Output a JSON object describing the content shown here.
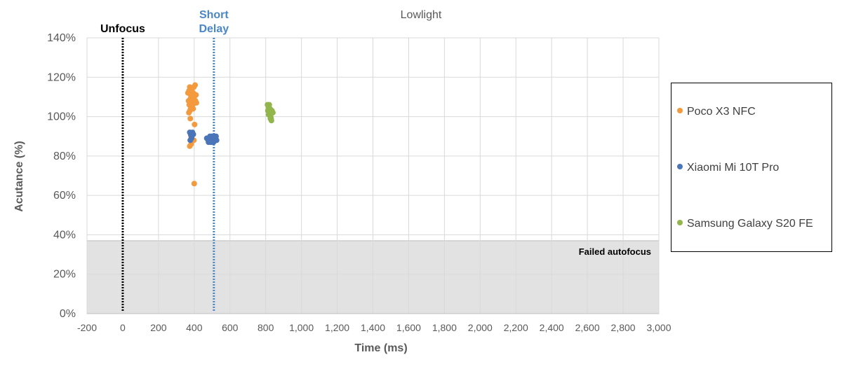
{
  "chart_data": {
    "type": "scatter",
    "title": "Lowlight",
    "xlabel": "Time (ms)",
    "ylabel": "Acutance (%)",
    "xlim": [
      -200,
      3000
    ],
    "ylim": [
      0,
      140
    ],
    "x_ticks": [
      -200,
      0,
      200,
      400,
      600,
      800,
      1000,
      1200,
      1400,
      1600,
      1800,
      2000,
      2200,
      2400,
      2600,
      2800,
      3000
    ],
    "x_tick_labels": [
      "-200",
      "0",
      "200",
      "400",
      "600",
      "800",
      "1,000",
      "1,200",
      "1,400",
      "1,600",
      "1,800",
      "2,000",
      "2,200",
      "2,400",
      "2,600",
      "2,800",
      "3,000"
    ],
    "y_ticks": [
      0,
      20,
      40,
      60,
      80,
      100,
      120,
      140
    ],
    "y_tick_labels": [
      "0%",
      "20%",
      "40%",
      "60%",
      "80%",
      "100%",
      "120%",
      "140%"
    ],
    "grid": true,
    "legend_position": "right",
    "failed_zone": {
      "label": "Failed autofocus",
      "ymax": 37,
      "color": "#e2e2e2"
    },
    "reference_lines": [
      {
        "label": "Unfocus",
        "x": 0,
        "color": "#000000",
        "style": "dotted"
      },
      {
        "label": "Short Delay",
        "x": 510,
        "color": "#4a86c8",
        "style": "dotted"
      }
    ],
    "series": [
      {
        "name": "Poco X3 NFC",
        "color": "#f39a3e",
        "points": [
          [
            365,
            112
          ],
          [
            370,
            113
          ],
          [
            375,
            115
          ],
          [
            378,
            109
          ],
          [
            380,
            111
          ],
          [
            382,
            107
          ],
          [
            385,
            110
          ],
          [
            388,
            114
          ],
          [
            390,
            108
          ],
          [
            392,
            106
          ],
          [
            395,
            112
          ],
          [
            398,
            115
          ],
          [
            400,
            110
          ],
          [
            402,
            107
          ],
          [
            405,
            116
          ],
          [
            407,
            108
          ],
          [
            410,
            111
          ],
          [
            372,
            106
          ],
          [
            368,
            108
          ],
          [
            376,
            103
          ],
          [
            380,
            104
          ],
          [
            386,
            105
          ],
          [
            394,
            104
          ],
          [
            412,
            107
          ],
          [
            370,
            102
          ],
          [
            378,
            99
          ],
          [
            402,
            96
          ],
          [
            382,
            90
          ],
          [
            386,
            89
          ],
          [
            378,
            88
          ],
          [
            383,
            86
          ],
          [
            375,
            85
          ],
          [
            398,
            88
          ],
          [
            400,
            66
          ]
        ]
      },
      {
        "name": "Xiaomi Mi 10T Pro",
        "color": "#4a75b8",
        "points": [
          [
            375,
            92
          ],
          [
            380,
            91
          ],
          [
            385,
            90
          ],
          [
            390,
            92
          ],
          [
            378,
            88
          ],
          [
            385,
            89
          ],
          [
            395,
            91
          ],
          [
            470,
            89
          ],
          [
            478,
            88
          ],
          [
            485,
            89
          ],
          [
            490,
            88
          ],
          [
            495,
            89
          ],
          [
            500,
            88
          ],
          [
            505,
            90
          ],
          [
            510,
            89
          ],
          [
            515,
            88
          ],
          [
            520,
            89
          ],
          [
            525,
            88
          ],
          [
            480,
            87
          ],
          [
            492,
            87
          ],
          [
            500,
            87
          ],
          [
            508,
            87
          ],
          [
            516,
            88
          ],
          [
            522,
            90
          ],
          [
            488,
            90
          ],
          [
            498,
            90
          ],
          [
            512,
            90
          ]
        ]
      },
      {
        "name": "Samsung Galaxy S20 FE",
        "color": "#93b64c",
        "points": [
          [
            810,
            106
          ],
          [
            815,
            105
          ],
          [
            818,
            104
          ],
          [
            820,
            103
          ],
          [
            822,
            102
          ],
          [
            825,
            101
          ],
          [
            828,
            100
          ],
          [
            830,
            99
          ],
          [
            832,
            98
          ],
          [
            812,
            103
          ],
          [
            816,
            101
          ],
          [
            824,
            104
          ],
          [
            835,
            103
          ],
          [
            840,
            102
          ],
          [
            820,
            106
          ],
          [
            826,
            99
          ]
        ]
      }
    ]
  }
}
